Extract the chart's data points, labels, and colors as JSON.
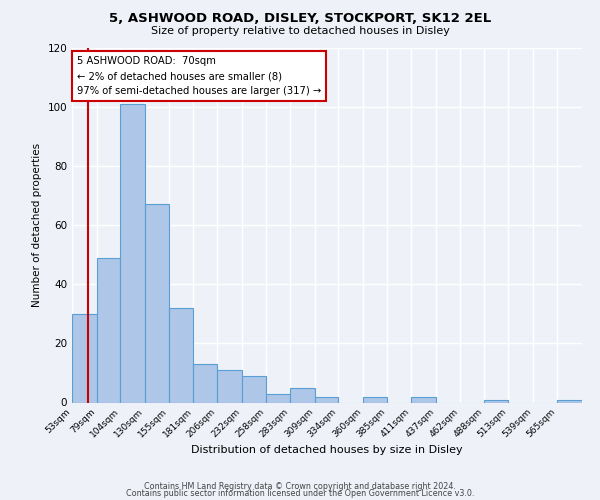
{
  "title": "5, ASHWOOD ROAD, DISLEY, STOCKPORT, SK12 2EL",
  "subtitle": "Size of property relative to detached houses in Disley",
  "xlabel": "Distribution of detached houses by size in Disley",
  "ylabel": "Number of detached properties",
  "bar_labels": [
    "53sqm",
    "79sqm",
    "104sqm",
    "130sqm",
    "155sqm",
    "181sqm",
    "206sqm",
    "232sqm",
    "258sqm",
    "283sqm",
    "309sqm",
    "334sqm",
    "360sqm",
    "385sqm",
    "411sqm",
    "437sqm",
    "462sqm",
    "488sqm",
    "513sqm",
    "539sqm",
    "565sqm"
  ],
  "bar_values": [
    30,
    49,
    101,
    67,
    32,
    13,
    11,
    9,
    3,
    5,
    2,
    0,
    2,
    0,
    2,
    0,
    0,
    1,
    0,
    0,
    1
  ],
  "bar_color": "#aec6e8",
  "bar_edge_color": "#5a9fd4",
  "ylim": [
    0,
    120
  ],
  "yticks": [
    0,
    20,
    40,
    60,
    80,
    100,
    120
  ],
  "property_line_x": 70,
  "annotation_title": "5 ASHWOOD ROAD:  70sqm",
  "annotation_line1": "← 2% of detached houses are smaller (8)",
  "annotation_line2": "97% of semi-detached houses are larger (317) →",
  "annotation_box_color": "#ffffff",
  "annotation_box_edge_color": "#cc0000",
  "property_line_color": "#cc0000",
  "footer1": "Contains HM Land Registry data © Crown copyright and database right 2024.",
  "footer2": "Contains public sector information licensed under the Open Government Licence v3.0.",
  "background_color": "#eef2f8",
  "grid_color": "#ffffff",
  "bin_edges": [
    53,
    79,
    104,
    130,
    155,
    181,
    206,
    232,
    258,
    283,
    309,
    334,
    360,
    385,
    411,
    437,
    462,
    488,
    513,
    539,
    565,
    591
  ]
}
